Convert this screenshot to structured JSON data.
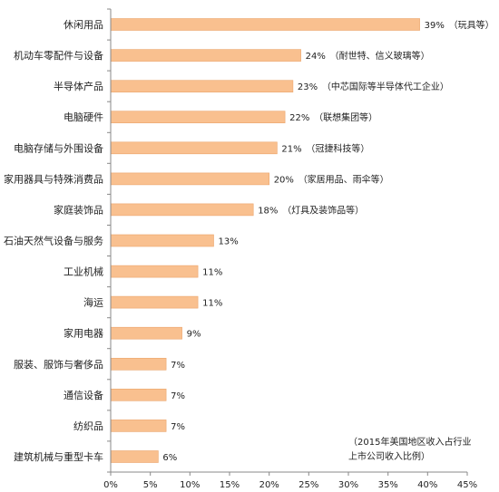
{
  "chart_data": {
    "type": "bar",
    "orientation": "horizontal",
    "categories": [
      "休闲用品",
      "机动车零配件与设备",
      "半导体产品",
      "电脑硬件",
      "电脑存储与外围设备",
      "家用器具与特殊消费品",
      "家庭装饰品",
      "石油天然气设备与服务",
      "工业机械",
      "海运",
      "家用电器",
      "服装、服饰与奢侈品",
      "通信设备",
      "纺织品",
      "建筑机械与重型卡车"
    ],
    "values": [
      39,
      24,
      23,
      22,
      21,
      20,
      18,
      13,
      11,
      11,
      9,
      7,
      7,
      7,
      6
    ],
    "value_labels": [
      "39%",
      "24%",
      "23%",
      "22%",
      "21%",
      "20%",
      "18%",
      "13%",
      "11%",
      "11%",
      "9%",
      "7%",
      "7%",
      "7%",
      "6%"
    ],
    "notes": [
      "（玩具等）",
      "（耐世特、信义玻璃等）",
      "（中芯国际等半导体代工企业）",
      "（联想集团等）",
      "（冠捷科技等）",
      "（家居用品、雨伞等）",
      "（灯具及装饰品等）",
      "",
      "",
      "",
      "",
      "",
      "",
      "",
      ""
    ],
    "xlim": [
      0,
      45
    ],
    "x_ticks": [
      0,
      5,
      10,
      15,
      20,
      25,
      30,
      35,
      40,
      45
    ],
    "x_tick_labels": [
      "0%",
      "5%",
      "10%",
      "15%",
      "20%",
      "25%",
      "30%",
      "35%",
      "40%",
      "45%"
    ],
    "annotation": [
      "（2015年美国地区收入占行业",
      "上市公司收入比例）"
    ],
    "grid": false,
    "colors": {
      "bar": "#F9C08F",
      "bar_stroke": "#EBA56C",
      "axis": "#888888"
    }
  }
}
